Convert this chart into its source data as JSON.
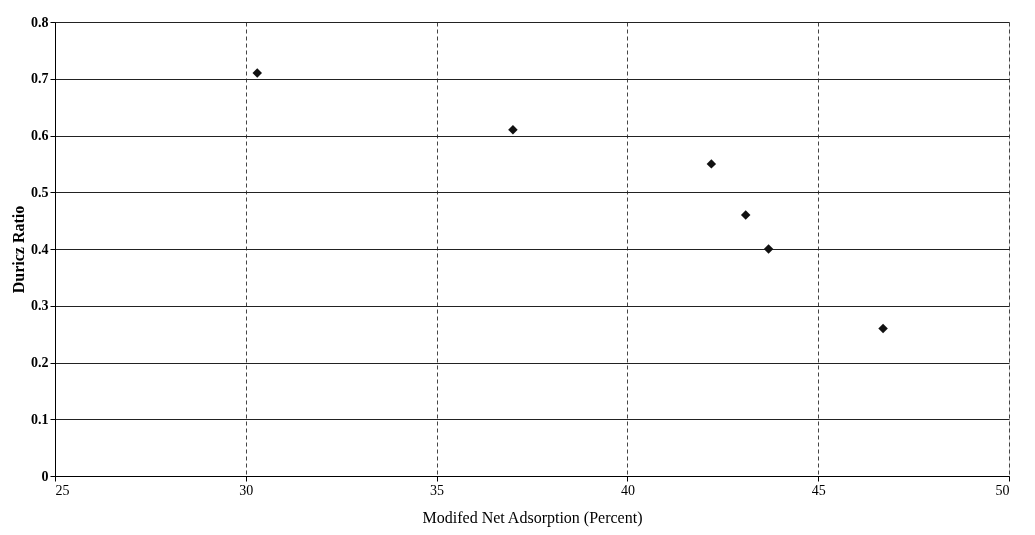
{
  "chart_data": {
    "type": "scatter",
    "xlabel": "Modifed Net Adsorption (Percent)",
    "ylabel": "Duricz Ratio",
    "x": [
      30.3,
      37.0,
      42.2,
      43.1,
      43.7,
      46.7
    ],
    "series": [
      {
        "color": "#111111",
        "values": [
          0.71,
          0.61,
          0.55,
          0.46,
          0.4,
          0.26
        ]
      }
    ],
    "xlim": [
      25,
      50
    ],
    "xticks": [
      25,
      30,
      35,
      40,
      45,
      50
    ],
    "ylim": [
      0,
      0.8
    ],
    "yticks": [
      0,
      0.1,
      0.2,
      0.3,
      0.4,
      0.5,
      0.6,
      0.7,
      0.8
    ],
    "grid": true,
    "marker": "diamond"
  }
}
